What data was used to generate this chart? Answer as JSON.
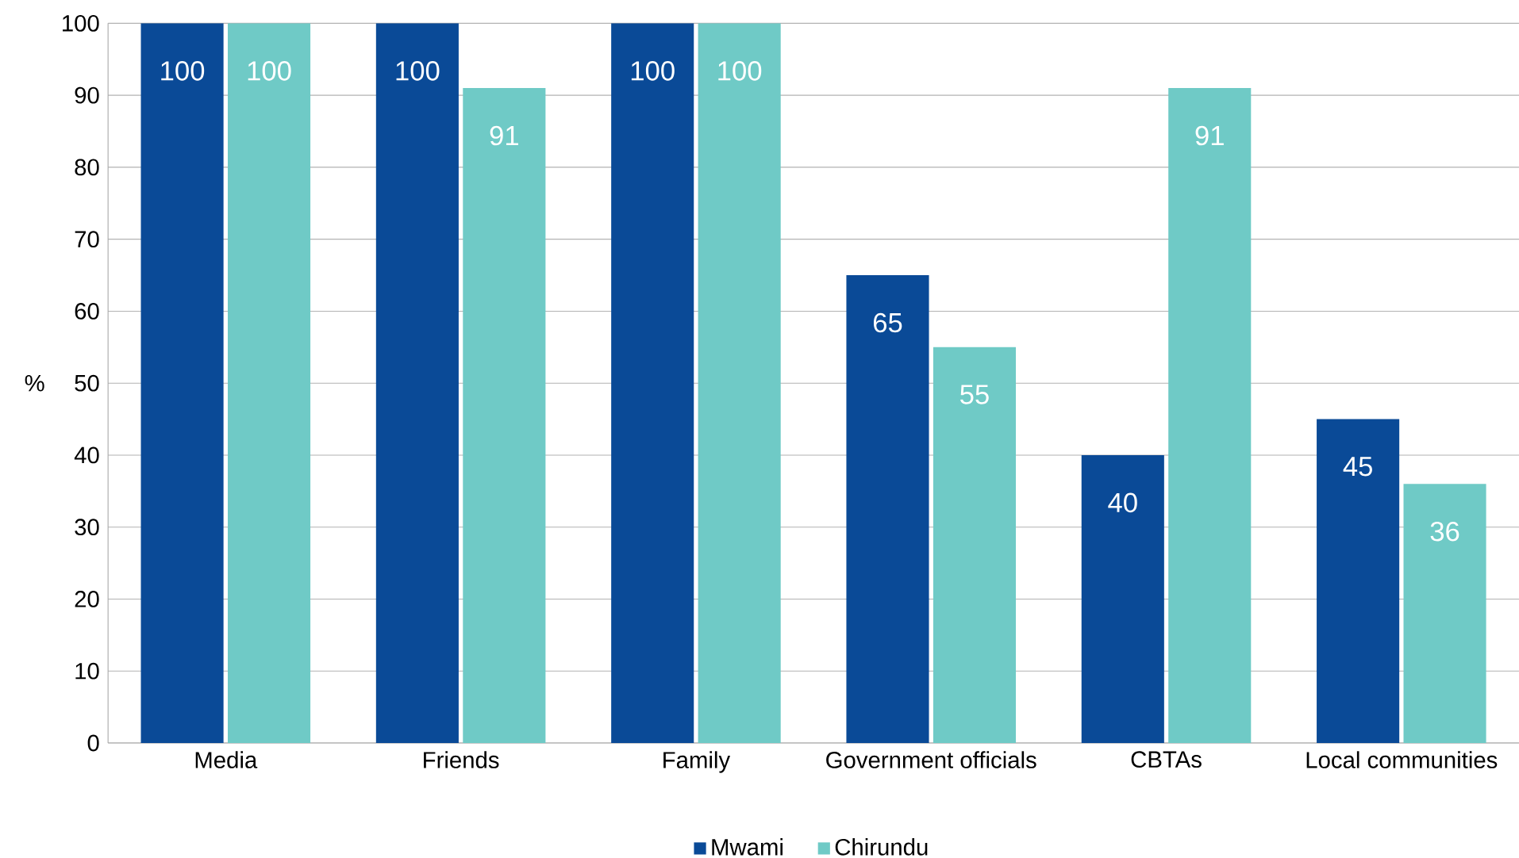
{
  "chart_data": {
    "type": "bar",
    "ylabel": "%",
    "categories": [
      "Media",
      "Friends",
      "Family",
      "Government officials",
      "CBTAs",
      "Local communities"
    ],
    "series": [
      {
        "name": "Mwami",
        "color": "#0a4a97",
        "values": [
          100,
          100,
          100,
          65,
          40,
          45
        ]
      },
      {
        "name": "Chirundu",
        "color": "#6fcac6",
        "values": [
          100,
          91,
          100,
          55,
          91,
          36
        ]
      }
    ],
    "ylim": [
      0,
      100
    ],
    "yticks": [
      0,
      10,
      20,
      30,
      40,
      50,
      60,
      70,
      80,
      90,
      100
    ],
    "grid": "y",
    "legend": "bottom",
    "data_labels": true
  }
}
